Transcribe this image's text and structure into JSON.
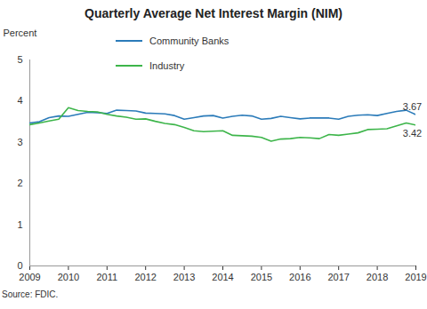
{
  "chart_data": {
    "type": "line",
    "title": "Quarterly Average Net Interest Margin (NIM)",
    "ylabel": "Percent",
    "source": "Source: FDIC.",
    "x": [
      2009,
      2009.25,
      2009.5,
      2009.75,
      2010,
      2010.25,
      2010.5,
      2010.75,
      2011,
      2011.25,
      2011.5,
      2011.75,
      2012,
      2012.25,
      2012.5,
      2012.75,
      2013,
      2013.25,
      2013.5,
      2013.75,
      2014,
      2014.25,
      2014.5,
      2014.75,
      2015,
      2015.25,
      2015.5,
      2015.75,
      2016,
      2016.25,
      2016.5,
      2016.75,
      2017,
      2017.25,
      2017.5,
      2017.75,
      2018,
      2018.25,
      2018.5,
      2018.75,
      2019
    ],
    "series": [
      {
        "name": "Community Banks",
        "color": "#2b7bb9",
        "values": [
          3.47,
          3.5,
          3.6,
          3.64,
          3.63,
          3.68,
          3.73,
          3.72,
          3.7,
          3.78,
          3.77,
          3.76,
          3.71,
          3.7,
          3.69,
          3.65,
          3.56,
          3.6,
          3.64,
          3.65,
          3.59,
          3.63,
          3.66,
          3.64,
          3.56,
          3.58,
          3.63,
          3.6,
          3.57,
          3.59,
          3.59,
          3.59,
          3.56,
          3.63,
          3.66,
          3.67,
          3.65,
          3.7,
          3.75,
          3.78,
          3.67
        ]
      },
      {
        "name": "Industry",
        "color": "#3db54a",
        "values": [
          3.43,
          3.47,
          3.52,
          3.56,
          3.84,
          3.77,
          3.75,
          3.74,
          3.68,
          3.64,
          3.61,
          3.56,
          3.57,
          3.51,
          3.46,
          3.43,
          3.36,
          3.28,
          3.26,
          3.27,
          3.28,
          3.17,
          3.16,
          3.15,
          3.12,
          3.03,
          3.08,
          3.09,
          3.12,
          3.11,
          3.09,
          3.19,
          3.17,
          3.2,
          3.23,
          3.31,
          3.32,
          3.33,
          3.4,
          3.47,
          3.42
        ]
      }
    ],
    "xlim": [
      2009,
      2019
    ],
    "xticks": [
      2009,
      2010,
      2011,
      2012,
      2013,
      2014,
      2015,
      2016,
      2017,
      2018,
      2019
    ],
    "ylim": [
      0,
      5
    ],
    "yticks": [
      0,
      1,
      2,
      3,
      4,
      5
    ],
    "grid": false,
    "legend": "top-left",
    "annotations": [
      {
        "text": "3.67",
        "x": 2019,
        "y": 3.67
      },
      {
        "text": "3.42",
        "x": 2019,
        "y": 3.42
      }
    ]
  }
}
